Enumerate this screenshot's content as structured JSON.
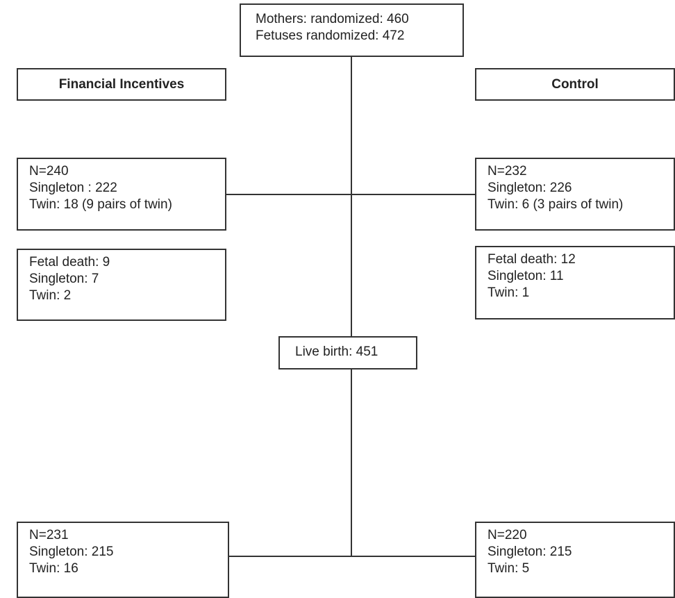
{
  "randomization": {
    "mothers": "Mothers: randomized: 460",
    "fetuses": "Fetuses randomized: 472"
  },
  "arms": {
    "financial": {
      "header": "Financial Incentives",
      "allocation": [
        "N=240",
        "Singleton : 222",
        "Twin: 18 (9 pairs of twin)"
      ],
      "fetal_death": [
        "Fetal death: 9",
        "Singleton: 7",
        "Twin: 2"
      ],
      "final": [
        "N=231",
        "Singleton: 215",
        "Twin: 16"
      ]
    },
    "control": {
      "header": "Control",
      "allocation": [
        "N=232",
        "Singleton: 226",
        "Twin: 6 (3 pairs of twin)"
      ],
      "fetal_death": [
        "Fetal death: 12",
        "Singleton: 11",
        "Twin: 1"
      ],
      "final": [
        "N=220",
        "Singleton: 215",
        "Twin: 5"
      ]
    }
  },
  "live_birth": "Live birth: 451",
  "colors": {
    "line": "#333333",
    "text": "#222222",
    "background": "#ffffff"
  }
}
